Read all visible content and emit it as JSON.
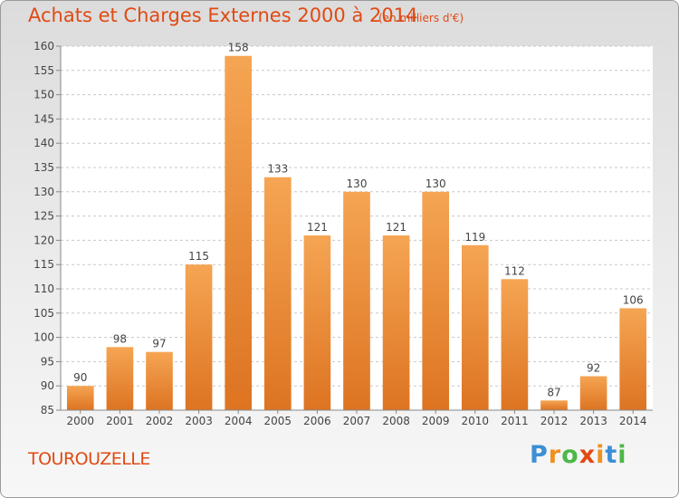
{
  "header": {
    "title": "Achats et Charges Externes 2000 à 2014",
    "subtitle": "(en milliers d'€)"
  },
  "footer": {
    "commune": "TOUROUZELLE",
    "logo_text": "Proxiti"
  },
  "colors": {
    "accent": "#E04A14",
    "bar_light": "#F5A553",
    "bar_dark": "#DD7422",
    "logo": [
      "#3C8FD6",
      "#F09020",
      "#4CB848",
      "#E04A14",
      "#F09020",
      "#3C8FD6",
      "#4CB848"
    ]
  },
  "chart_data": {
    "type": "bar",
    "categories": [
      "2000",
      "2001",
      "2002",
      "2003",
      "2004",
      "2005",
      "2006",
      "2007",
      "2008",
      "2009",
      "2010",
      "2011",
      "2012",
      "2013",
      "2014"
    ],
    "values": [
      90,
      98,
      97,
      115,
      158,
      133,
      121,
      130,
      121,
      130,
      119,
      112,
      87,
      92,
      106
    ],
    "data_labels": [
      "90",
      "98",
      "97",
      "115",
      "158",
      "133",
      "121",
      "130",
      "121",
      "130",
      "119",
      "112",
      "87",
      "92",
      "106"
    ],
    "ylim": [
      85,
      160
    ],
    "yticks": [
      85,
      90,
      95,
      100,
      105,
      110,
      115,
      120,
      125,
      130,
      135,
      140,
      145,
      150,
      155,
      160
    ],
    "grid": true,
    "xlabel": "",
    "ylabel": ""
  }
}
